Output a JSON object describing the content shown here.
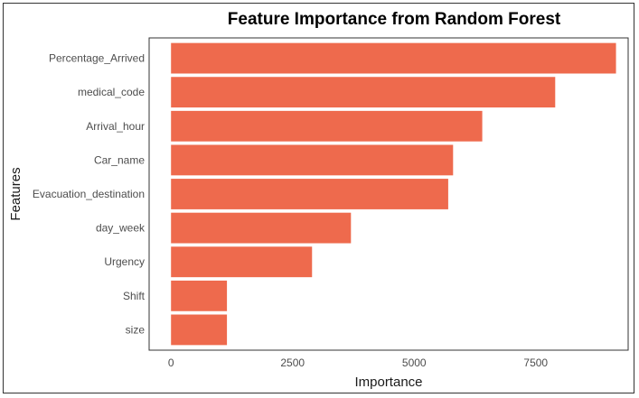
{
  "chart_data": {
    "type": "bar",
    "orientation": "horizontal",
    "title": "Feature Importance from Random Forest",
    "xlabel": "Importance",
    "ylabel": "Features",
    "categories": [
      "Percentage_Arrived",
      "medical_code",
      "Arrival_hour",
      "Car_name",
      "Evacuation_destination",
      "day_week",
      "Urgency",
      "Shift",
      "size"
    ],
    "values": [
      9150,
      7900,
      6400,
      5800,
      5700,
      3700,
      2900,
      1150,
      1150
    ],
    "xlim": [
      -450,
      9400
    ],
    "xticks": [
      0,
      2500,
      5000,
      7500
    ],
    "xtick_labels": [
      "0",
      "2500",
      "5000",
      "7500"
    ],
    "bar_color": "#ee6a4d",
    "grid": false
  }
}
